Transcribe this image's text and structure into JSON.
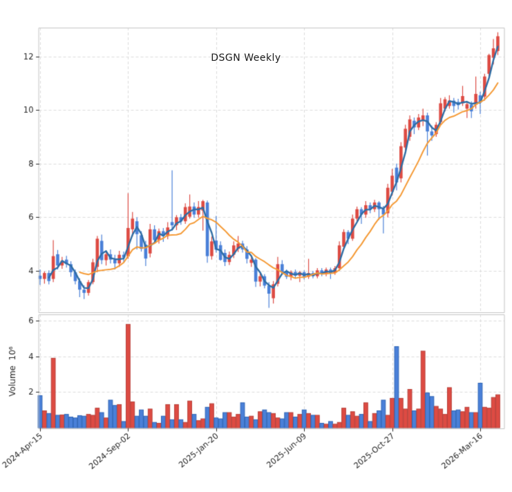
{
  "title": "DSGN  Weekly",
  "inner_label": "DSGN  Weekly",
  "chart_data": {
    "type": "candlestick+volume",
    "title": "DSGN  Weekly",
    "annotation": "DSGN  Weekly",
    "x_tick_labels": [
      "2024-Apr-15",
      "2024-Sep-02",
      "2025-Jan-20",
      "2025-Jun-09",
      "2025-Oct-27",
      "2026-Mar-16"
    ],
    "x_tick_indices": [
      0,
      20,
      40,
      60,
      80,
      100
    ],
    "price_axis": {
      "tick_labels": [
        "4",
        "6",
        "8",
        "10",
        "12"
      ],
      "tick_values": [
        4,
        6,
        8,
        10,
        12
      ],
      "range": [
        2.45,
        13.07
      ],
      "grid": true
    },
    "volume_axis": {
      "label": "Volume  10⁶",
      "tick_labels": [
        "2",
        "4",
        "6"
      ],
      "tick_values": [
        2,
        4,
        6
      ],
      "range": [
        0,
        6.4
      ],
      "unit_millions": true,
      "grid": true
    },
    "ma_fast_window": 3,
    "ma_slow_window": 10,
    "colors": {
      "up": "#dd4b43",
      "up_edge": "#b8423b",
      "down": "#4a80d8",
      "down_edge": "#2e64b5",
      "ma_fast": "#2e6da4",
      "ma_slow": "#f59a35",
      "grid": "#dcdcdc",
      "spine": "#c4c4c4",
      "text": "#262626",
      "background": "#ffffff"
    },
    "candles_format": [
      "open",
      "high",
      "low",
      "close",
      "volume_millions"
    ],
    "candles": [
      [
        3.82,
        4.05,
        3.48,
        3.7,
        1.8
      ],
      [
        3.7,
        3.98,
        3.52,
        3.92,
        0.95
      ],
      [
        3.92,
        4.02,
        3.5,
        3.62,
        0.8
      ],
      [
        3.7,
        5.15,
        3.58,
        4.55,
        3.9
      ],
      [
        4.62,
        4.78,
        4.05,
        4.2,
        0.7
      ],
      [
        4.2,
        4.52,
        4.08,
        4.38,
        0.72
      ],
      [
        4.42,
        4.56,
        4.12,
        4.25,
        0.75
      ],
      [
        4.25,
        4.36,
        3.78,
        3.95,
        0.6
      ],
      [
        3.95,
        4.05,
        3.5,
        3.62,
        0.55
      ],
      [
        3.62,
        3.72,
        3.02,
        3.3,
        0.68
      ],
      [
        3.3,
        3.46,
        2.95,
        3.18,
        0.65
      ],
      [
        3.18,
        3.66,
        3.08,
        3.58,
        0.75
      ],
      [
        3.58,
        4.45,
        3.5,
        4.32,
        0.7
      ],
      [
        4.15,
        5.3,
        3.95,
        5.2,
        1.1
      ],
      [
        5.12,
        5.35,
        4.25,
        4.4,
        0.85
      ],
      [
        4.4,
        4.76,
        4.2,
        4.62,
        0.55
      ],
      [
        4.62,
        4.8,
        4.28,
        4.42,
        1.55
      ],
      [
        4.42,
        4.6,
        4.05,
        4.28,
        1.25
      ],
      [
        4.28,
        4.75,
        4.15,
        4.6,
        1.3
      ],
      [
        4.6,
        4.72,
        4.32,
        4.5,
        0.35
      ],
      [
        4.54,
        6.9,
        4.45,
        5.6,
        5.8
      ],
      [
        5.55,
        6.2,
        5.28,
        5.95,
        1.45
      ],
      [
        5.85,
        6.0,
        4.8,
        5.37,
        0.65
      ],
      [
        5.33,
        5.48,
        4.72,
        4.82,
        1.0
      ],
      [
        4.98,
        5.12,
        4.18,
        4.46,
        0.65
      ],
      [
        4.65,
        5.75,
        4.5,
        5.55,
        1.05
      ],
      [
        5.55,
        5.7,
        5.02,
        5.15,
        0.3
      ],
      [
        5.15,
        5.58,
        5.02,
        5.48,
        0.25
      ],
      [
        5.48,
        5.6,
        5.08,
        5.3,
        0.65
      ],
      [
        5.3,
        5.82,
        5.18,
        5.62,
        1.3
      ],
      [
        5.82,
        7.75,
        5.5,
        5.7,
        0.45
      ],
      [
        5.7,
        6.08,
        5.52,
        6.0,
        1.3
      ],
      [
        6.0,
        6.12,
        5.72,
        5.85,
        0.45
      ],
      [
        5.85,
        6.52,
        5.75,
        6.38,
        0.3
      ],
      [
        6.02,
        6.85,
        5.95,
        6.4,
        1.5
      ],
      [
        6.4,
        6.55,
        5.98,
        6.1,
        0.75
      ],
      [
        6.1,
        6.6,
        5.98,
        6.38,
        0.4
      ],
      [
        6.25,
        6.65,
        5.5,
        6.6,
        0.5
      ],
      [
        6.55,
        6.62,
        4.3,
        4.55,
        1.15
      ],
      [
        4.55,
        5.28,
        4.42,
        5.1,
        1.35
      ],
      [
        5.13,
        6.05,
        4.68,
        4.79,
        0.55
      ],
      [
        4.96,
        5.1,
        4.38,
        4.41,
        0.5
      ],
      [
        4.67,
        4.8,
        4.18,
        4.33,
        0.85
      ],
      [
        4.33,
        4.72,
        4.22,
        4.6,
        0.85
      ],
      [
        4.6,
        5.1,
        4.48,
        4.95,
        0.6
      ],
      [
        4.82,
        5.3,
        4.7,
        5.02,
        0.75
      ],
      [
        5.02,
        5.12,
        4.68,
        4.8,
        1.4
      ],
      [
        4.8,
        4.92,
        4.28,
        4.45,
        0.6
      ],
      [
        4.3,
        4.5,
        4.15,
        4.42,
        0.65
      ],
      [
        4.42,
        4.48,
        3.4,
        3.6,
        0.45
      ],
      [
        3.6,
        3.92,
        3.42,
        3.8,
        0.9
      ],
      [
        3.8,
        3.88,
        3.35,
        3.45,
        1.0
      ],
      [
        3.45,
        3.58,
        2.62,
        3.15,
        0.85
      ],
      [
        2.98,
        3.62,
        2.78,
        3.5,
        0.8
      ],
      [
        3.52,
        4.52,
        3.42,
        4.25,
        0.55
      ],
      [
        4.25,
        4.4,
        3.85,
        3.95,
        0.5
      ],
      [
        3.95,
        4.05,
        3.7,
        3.78,
        0.85
      ],
      [
        3.78,
        4.02,
        3.65,
        3.96,
        0.85
      ],
      [
        3.96,
        4.05,
        3.72,
        3.82,
        0.6
      ],
      [
        3.82,
        4.0,
        3.58,
        3.95,
        0.75
      ],
      [
        3.95,
        4.02,
        3.68,
        3.78,
        1.0
      ],
      [
        3.78,
        4.45,
        3.7,
        3.92,
        0.8
      ],
      [
        3.92,
        4.0,
        3.72,
        3.8,
        0.7
      ],
      [
        3.8,
        4.1,
        3.72,
        4.02,
        0.7
      ],
      [
        4.02,
        4.1,
        3.8,
        3.88,
        0.25
      ],
      [
        3.88,
        4.12,
        3.8,
        4.05,
        0.2
      ],
      [
        4.05,
        4.12,
        3.7,
        3.92,
        0.35
      ],
      [
        3.92,
        4.18,
        3.85,
        4.1,
        0.2
      ],
      [
        4.1,
        5.1,
        4.0,
        4.95,
        0.3
      ],
      [
        4.9,
        5.55,
        4.82,
        5.45,
        1.1
      ],
      [
        5.45,
        5.52,
        5.0,
        5.2,
        0.7
      ],
      [
        5.2,
        6.1,
        5.12,
        5.95,
        0.9
      ],
      [
        5.95,
        6.4,
        5.8,
        6.3,
        0.65
      ],
      [
        6.3,
        6.38,
        5.75,
        6.1,
        0.75
      ],
      [
        6.1,
        6.6,
        5.98,
        6.45,
        1.4
      ],
      [
        6.45,
        6.55,
        6.15,
        6.3,
        0.35
      ],
      [
        6.3,
        6.65,
        6.2,
        6.55,
        0.8
      ],
      [
        6.55,
        6.6,
        5.9,
        6.3,
        0.95
      ],
      [
        6.3,
        6.42,
        5.4,
        6.1,
        1.55
      ],
      [
        6.15,
        7.25,
        6.0,
        7.1,
        0.7
      ],
      [
        6.95,
        7.8,
        6.8,
        7.55,
        1.65
      ],
      [
        7.85,
        8.0,
        7.0,
        7.3,
        4.55
      ],
      [
        7.45,
        8.8,
        7.3,
        8.65,
        1.65
      ],
      [
        8.6,
        9.45,
        8.4,
        9.3,
        1.05
      ],
      [
        9.0,
        9.8,
        8.85,
        9.65,
        2.15
      ],
      [
        9.6,
        9.72,
        9.1,
        9.35,
        0.95
      ],
      [
        9.35,
        9.85,
        9.25,
        9.72,
        1.05
      ],
      [
        9.6,
        10.05,
        9.4,
        9.8,
        4.3
      ],
      [
        9.8,
        9.9,
        8.3,
        9.2,
        1.95
      ],
      [
        9.2,
        9.42,
        8.85,
        9.05,
        1.75
      ],
      [
        9.1,
        9.55,
        9.0,
        9.45,
        1.2
      ],
      [
        9.55,
        10.45,
        9.45,
        10.25,
        1.05
      ],
      [
        10.05,
        10.48,
        9.95,
        10.4,
        0.75
      ],
      [
        10.15,
        10.55,
        10.05,
        10.35,
        2.25
      ],
      [
        10.35,
        10.45,
        9.9,
        10.15,
        0.95
      ],
      [
        10.3,
        10.42,
        10.02,
        10.18,
        1.0
      ],
      [
        10.25,
        10.9,
        10.15,
        10.52,
        0.9
      ],
      [
        10.05,
        10.28,
        9.7,
        10.22,
        1.15
      ],
      [
        10.2,
        10.32,
        9.7,
        9.95,
        0.85
      ],
      [
        10.2,
        11.25,
        10.05,
        10.6,
        0.85
      ],
      [
        10.55,
        10.68,
        9.85,
        10.28,
        2.5
      ],
      [
        10.5,
        11.35,
        10.35,
        11.25,
        1.15
      ],
      [
        11.35,
        12.1,
        11.2,
        12.05,
        1.1
      ],
      [
        11.95,
        12.65,
        11.7,
        12.3,
        1.7
      ],
      [
        12.2,
        12.9,
        12.05,
        12.75,
        1.85
      ]
    ]
  }
}
